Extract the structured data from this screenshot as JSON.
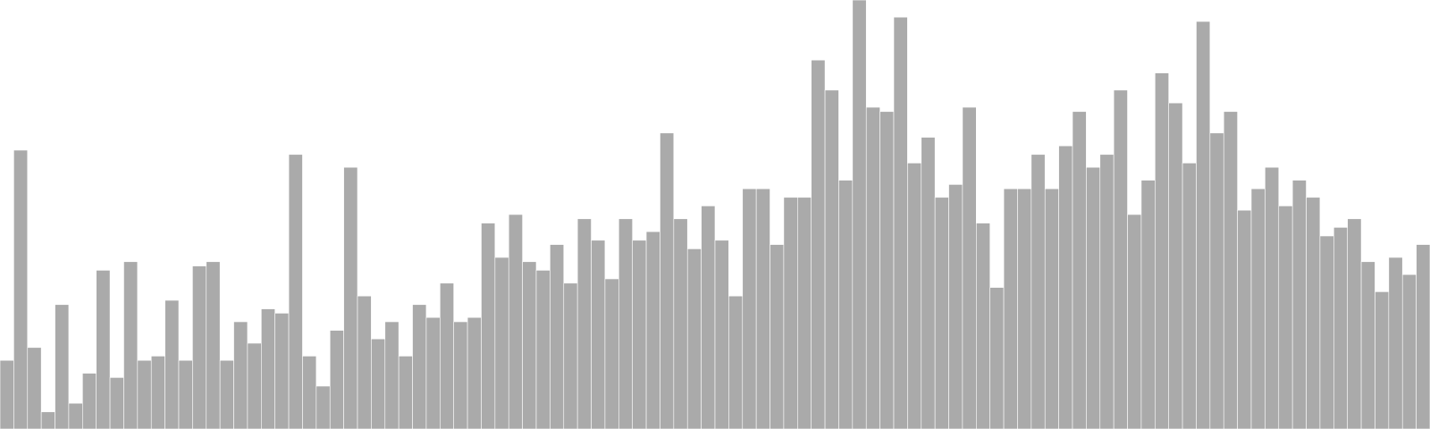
{
  "colors": {
    "background": "#ffffff",
    "bar_fill": "#aaaaaa",
    "bar_stroke": "#ffffff"
  },
  "chart_data": {
    "type": "bar",
    "title": "",
    "xlabel": "",
    "ylabel": "",
    "ylim": [
      0,
      100
    ],
    "grid": false,
    "legend": "none",
    "values": [
      16,
      65,
      19,
      4,
      29,
      6,
      13,
      37,
      12,
      39,
      16,
      17,
      30,
      16,
      38,
      39,
      16,
      25,
      20,
      28,
      27,
      64,
      17,
      10,
      23,
      61,
      31,
      21,
      25,
      17,
      29,
      26,
      34,
      25,
      26,
      48,
      40,
      50,
      39,
      37,
      43,
      34,
      49,
      44,
      35,
      49,
      44,
      46,
      69,
      49,
      42,
      52,
      44,
      31,
      56,
      56,
      43,
      54,
      54,
      86,
      79,
      58,
      100,
      75,
      74,
      96,
      62,
      68,
      54,
      57,
      75,
      48,
      33,
      56,
      56,
      64,
      56,
      66,
      74,
      61,
      64,
      79,
      50,
      58,
      83,
      76,
      62,
      95,
      69,
      74,
      51,
      56,
      61,
      52,
      58,
      54,
      45,
      47,
      49,
      39,
      32,
      40,
      36,
      43
    ]
  }
}
